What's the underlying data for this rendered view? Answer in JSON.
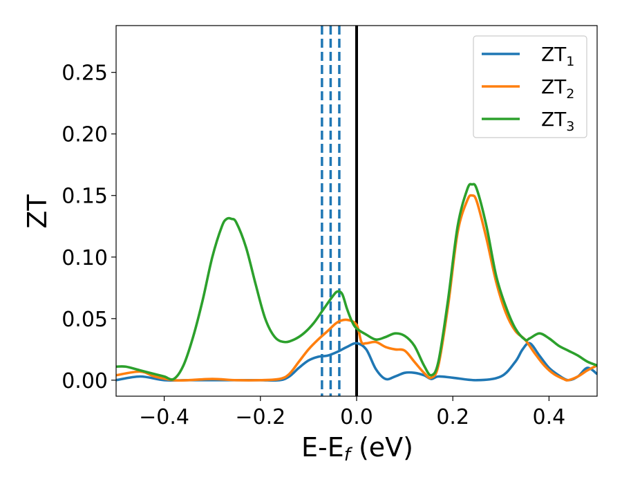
{
  "chart_data": {
    "type": "line",
    "xlabel": {
      "main": "E-E",
      "sub": "f",
      "suffix": " (eV)"
    },
    "ylabel": "ZT",
    "xlim": [
      -0.5,
      0.5
    ],
    "ylim": [
      -0.013,
      0.288
    ],
    "xticks": [
      -0.4,
      -0.2,
      0.0,
      0.2,
      0.4
    ],
    "xtick_labels": [
      "−0.4",
      "−0.2",
      "0.0",
      "0.2",
      "0.4"
    ],
    "yticks": [
      0.0,
      0.05,
      0.1,
      0.15,
      0.2,
      0.25
    ],
    "ytick_labels": [
      "0.00",
      "0.05",
      "0.10",
      "0.15",
      "0.20",
      "0.25"
    ],
    "legend_position": "top-right",
    "grid": false,
    "vertical_lines": [
      {
        "x": -0.072,
        "style": "dashed",
        "color": "#1f77b4"
      },
      {
        "x": -0.054,
        "style": "dashed",
        "color": "#1f77b4"
      },
      {
        "x": -0.036,
        "style": "dashed",
        "color": "#1f77b4"
      },
      {
        "x": 0.0,
        "style": "solid",
        "color": "#000000"
      }
    ],
    "series": [
      {
        "name": "ZT",
        "sub": "1",
        "color": "#1f77b4",
        "x": [
          -0.5,
          -0.45,
          -0.4,
          -0.35,
          -0.3,
          -0.25,
          -0.2,
          -0.16,
          -0.14,
          -0.12,
          -0.1,
          -0.08,
          -0.06,
          -0.04,
          -0.02,
          0.0,
          0.02,
          0.04,
          0.06,
          0.08,
          0.1,
          0.12,
          0.14,
          0.155,
          0.17,
          0.2,
          0.25,
          0.3,
          0.33,
          0.345,
          0.36,
          0.38,
          0.4,
          0.42,
          0.44,
          0.46,
          0.48,
          0.5
        ],
        "y": [
          0.0,
          0.003,
          0.0,
          0.0,
          0.0,
          0.0,
          0.0,
          0.0,
          0.003,
          0.01,
          0.016,
          0.019,
          0.02,
          0.023,
          0.027,
          0.03,
          0.025,
          0.009,
          0.001,
          0.003,
          0.006,
          0.006,
          0.004,
          0.001,
          0.003,
          0.002,
          0.0,
          0.003,
          0.015,
          0.025,
          0.03,
          0.02,
          0.01,
          0.004,
          0.0,
          0.003,
          0.01,
          0.005
        ]
      },
      {
        "name": "ZT",
        "sub": "2",
        "color": "#ff7f0e",
        "x": [
          -0.5,
          -0.45,
          -0.42,
          -0.38,
          -0.35,
          -0.3,
          -0.25,
          -0.2,
          -0.16,
          -0.14,
          -0.12,
          -0.1,
          -0.08,
          -0.06,
          -0.04,
          -0.02,
          0.0,
          0.01,
          0.02,
          0.04,
          0.06,
          0.08,
          0.1,
          0.12,
          0.14,
          0.155,
          0.17,
          0.19,
          0.21,
          0.23,
          0.24,
          0.25,
          0.27,
          0.29,
          0.31,
          0.33,
          0.35,
          0.37,
          0.39,
          0.41,
          0.43,
          0.44,
          0.46,
          0.48,
          0.5
        ],
        "y": [
          0.004,
          0.007,
          0.003,
          0.0,
          0.0,
          0.001,
          0.0,
          0.0,
          0.001,
          0.005,
          0.015,
          0.025,
          0.033,
          0.04,
          0.047,
          0.049,
          0.045,
          0.031,
          0.03,
          0.031,
          0.027,
          0.025,
          0.024,
          0.015,
          0.006,
          0.002,
          0.012,
          0.06,
          0.12,
          0.146,
          0.15,
          0.145,
          0.115,
          0.08,
          0.055,
          0.04,
          0.033,
          0.022,
          0.012,
          0.005,
          0.001,
          0.0,
          0.003,
          0.008,
          0.012
        ]
      },
      {
        "name": "ZT",
        "sub": "3",
        "color": "#2ca02c",
        "x": [
          -0.5,
          -0.48,
          -0.45,
          -0.42,
          -0.4,
          -0.38,
          -0.36,
          -0.34,
          -0.32,
          -0.3,
          -0.28,
          -0.27,
          -0.26,
          -0.25,
          -0.23,
          -0.21,
          -0.19,
          -0.17,
          -0.15,
          -0.13,
          -0.11,
          -0.09,
          -0.07,
          -0.05,
          -0.04,
          -0.03,
          -0.02,
          -0.01,
          0.0,
          0.02,
          0.04,
          0.06,
          0.08,
          0.1,
          0.12,
          0.14,
          0.155,
          0.17,
          0.19,
          0.21,
          0.23,
          0.24,
          0.25,
          0.27,
          0.29,
          0.31,
          0.33,
          0.35,
          0.36,
          0.38,
          0.4,
          0.42,
          0.44,
          0.46,
          0.48,
          0.5
        ],
        "y": [
          0.011,
          0.011,
          0.008,
          0.005,
          0.003,
          0.001,
          0.012,
          0.035,
          0.065,
          0.1,
          0.125,
          0.131,
          0.131,
          0.128,
          0.108,
          0.078,
          0.05,
          0.035,
          0.031,
          0.033,
          0.038,
          0.046,
          0.057,
          0.068,
          0.072,
          0.07,
          0.058,
          0.048,
          0.042,
          0.037,
          0.033,
          0.035,
          0.038,
          0.036,
          0.028,
          0.012,
          0.004,
          0.015,
          0.065,
          0.125,
          0.155,
          0.159,
          0.155,
          0.125,
          0.085,
          0.06,
          0.042,
          0.033,
          0.034,
          0.038,
          0.034,
          0.028,
          0.024,
          0.02,
          0.015,
          0.012
        ]
      }
    ]
  }
}
